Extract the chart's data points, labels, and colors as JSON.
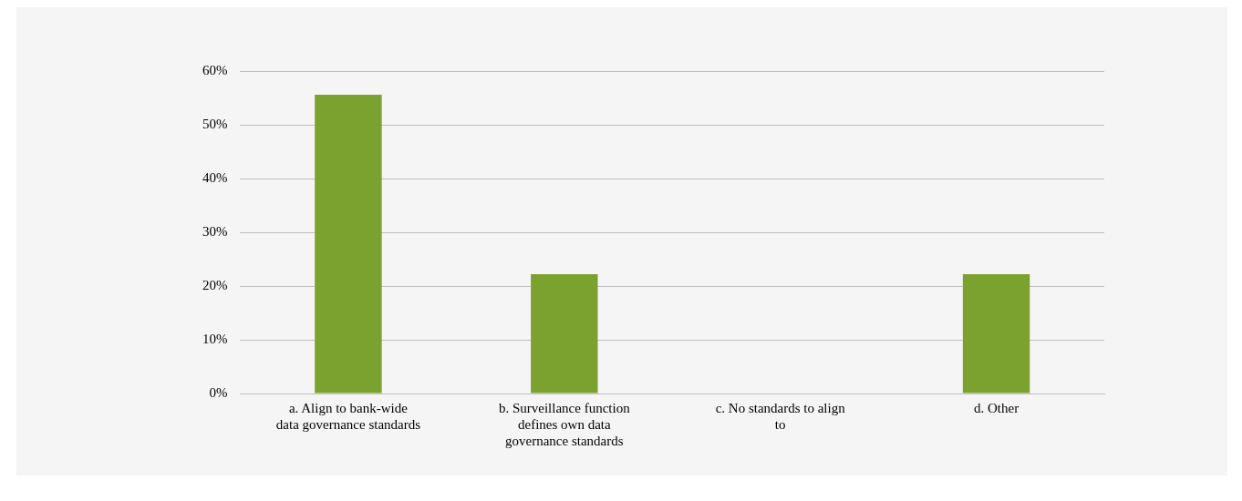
{
  "chart_data": {
    "type": "bar",
    "categories": [
      "a. Align to bank-wide data governance standards",
      "b. Surveillance function defines own data governance standards",
      "c. No standards to align to",
      "d. Other"
    ],
    "values": [
      55.6,
      22.2,
      0,
      22.2
    ],
    "color": "#7ba22e",
    "ylim": [
      0,
      60
    ],
    "yticks": [
      {
        "value": 0,
        "label": "0%"
      },
      {
        "value": 10,
        "label": "10%"
      },
      {
        "value": 20,
        "label": "20%"
      },
      {
        "value": 30,
        "label": "30%"
      },
      {
        "value": 40,
        "label": "40%"
      },
      {
        "value": 50,
        "label": "50%"
      },
      {
        "value": 60,
        "label": "60%"
      }
    ],
    "grid": "y",
    "legend": false
  }
}
